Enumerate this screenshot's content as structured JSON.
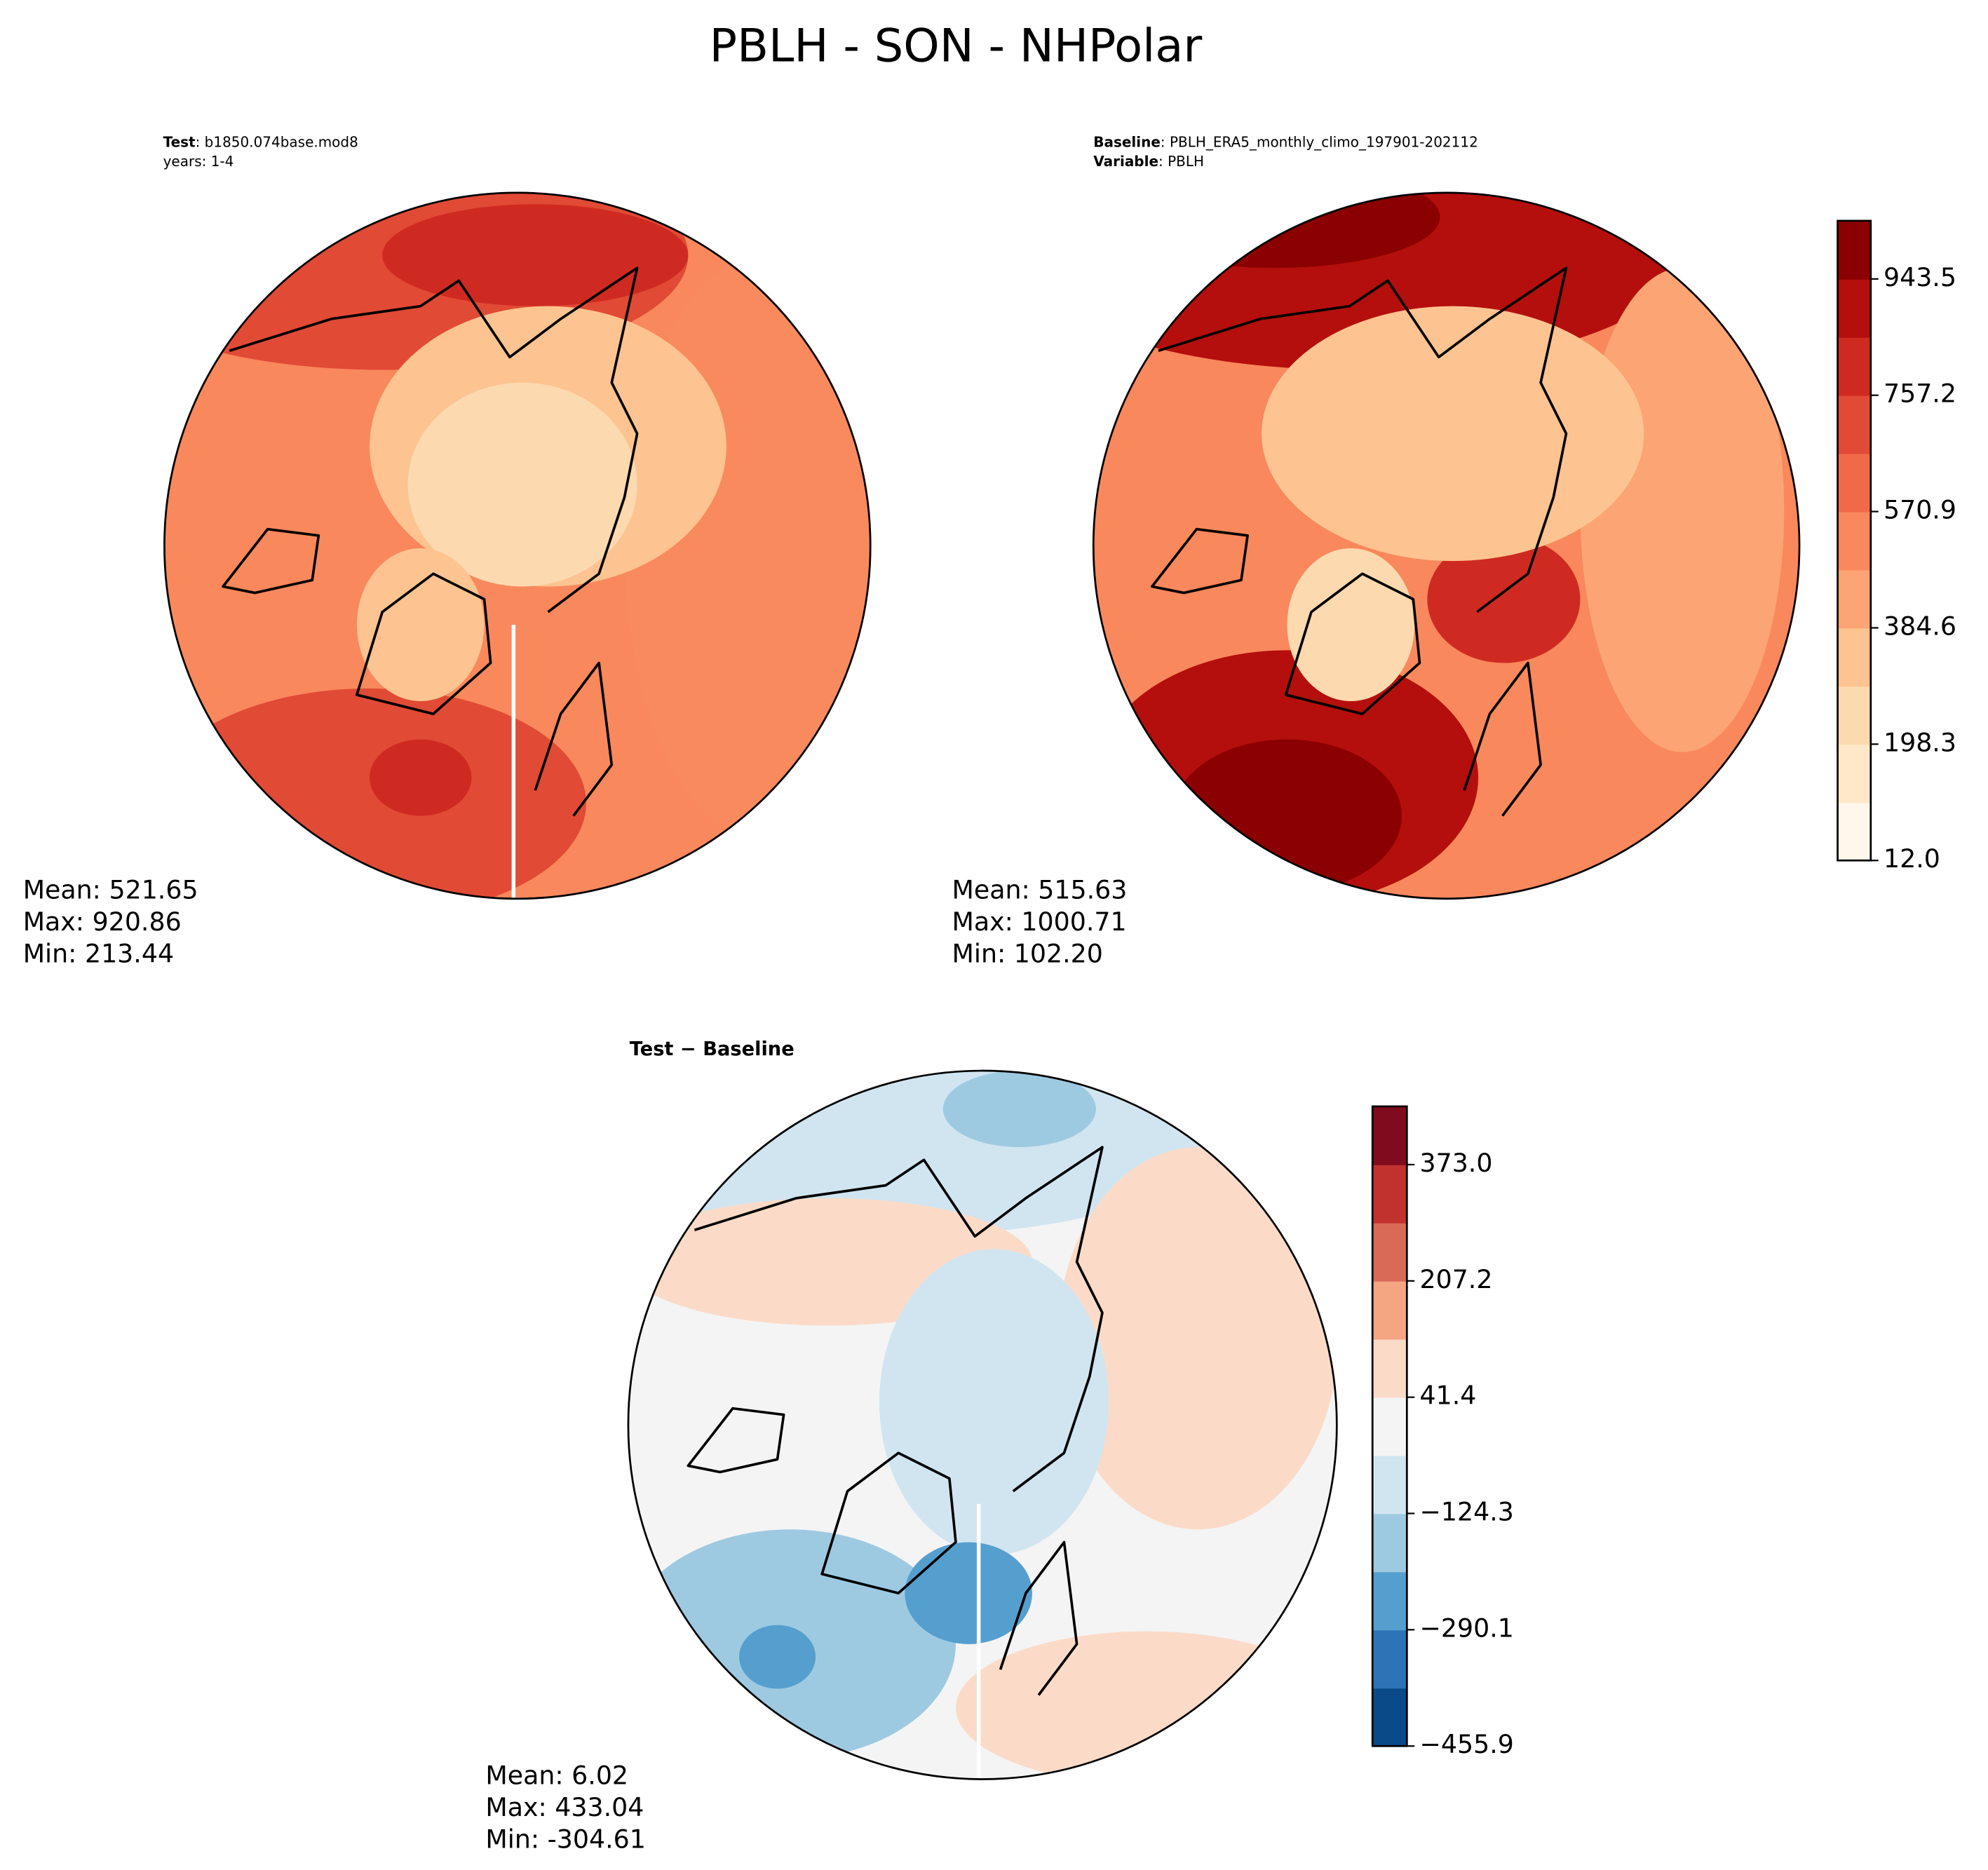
{
  "title": "PBLH - SON - NHPolar",
  "panels": [
    {
      "header": [
        {
          "bold": "Test",
          "text": ": b1850.074base.mod8"
        },
        {
          "text": "years: 1-4"
        }
      ],
      "stats": [
        "Mean: 521.65",
        "Max: 920.86",
        "Min: 213.44"
      ]
    },
    {
      "header": [
        {
          "bold": "Baseline",
          "text": ": PBLH_ERA5_monthly_climo_197901-202112"
        },
        {
          "bold": "Variable",
          "text": ": PBLH"
        }
      ],
      "stats": [
        "Mean: 515.63",
        "Max: 1000.71",
        "Min: 102.20"
      ]
    },
    {
      "header": [
        {
          "bold": "Test − Baseline"
        }
      ],
      "stats": [
        "Mean:  6.02",
        "Max: 433.04",
        "Min: -304.61"
      ]
    }
  ],
  "colorbars": [
    {
      "colors": [
        "#fff7ec",
        "#fee8c8",
        "#fdd9b0",
        "#fdc390",
        "#fca474",
        "#f9885c",
        "#f06a48",
        "#e14a35",
        "#cf2a22",
        "#b40f0c",
        "#8b0000"
      ],
      "ylim": [
        12,
        1036.65
      ],
      "yticks": [
        {
          "value": 12,
          "label": "12.0"
        },
        198.3,
        384.6,
        570.9,
        757.2,
        943.5
      ]
    },
    {
      "colors": [
        "#0b4a88",
        "#2c74b5",
        "#559fcf",
        "#9ecae1",
        "#d1e5f0",
        "#f4f4f4",
        "#fbdbc8",
        "#f4a582",
        "#d96a57",
        "#c1322f",
        "#800b1f"
      ],
      "ylim": [
        -455.9,
        456.0
      ],
      "yticks": [
        {
          "value": -455.9,
          "label": "−455.9"
        },
        {
          "value": -290.1,
          "label": "−290.1"
        },
        {
          "value": -124.3,
          "label": "−124.3"
        },
        41.4,
        207.2,
        {
          "value": 373.0,
          "label": "373.0"
        }
      ]
    }
  ]
}
